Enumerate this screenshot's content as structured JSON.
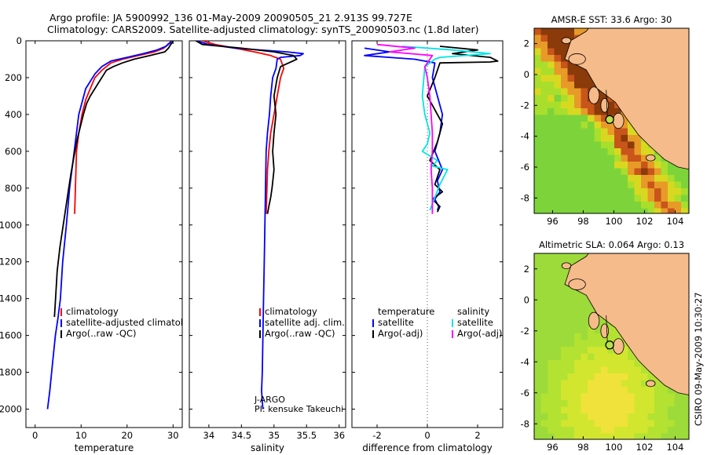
{
  "header": {
    "line1": "Argo profile: JA 5900992_136 01-May-2009 20090505_21 2.913S 99.727E",
    "line2": "Climatology: CARS2009. Satellite-adjusted climatology: synTS_20090503.nc (1.8d later)"
  },
  "footer": {
    "credit": "CSIRO 09-May-2009 10:30:27"
  },
  "colors": {
    "climatology": "#ff0000",
    "satellite": "#0000ff",
    "argo": "#000000",
    "sal_satellite": "#00e5e5",
    "sal_argo": "#ff00ff",
    "land": "#f5bb8a",
    "zero_line": "#555555"
  },
  "chart_data": [
    {
      "type": "line",
      "xlabel": "temperature",
      "ylabel": "",
      "xlim": [
        -2,
        32
      ],
      "ylim": [
        0,
        2100
      ],
      "y_inverted": true,
      "xticks": [
        0,
        10,
        20,
        30
      ],
      "yticks": [
        0,
        200,
        400,
        600,
        800,
        1000,
        1200,
        1400,
        1600,
        1800,
        2000
      ],
      "legend": [
        "climatology",
        "satellite-adjusted climatology",
        "Argo(..raw -QC)"
      ],
      "legend_location": "lower-right",
      "series": [
        {
          "name": "climatology",
          "color": "#ff0000",
          "x": [
            29.5,
            29.3,
            28.8,
            28.0,
            26.0,
            22.5,
            19.0,
            16.5,
            14.5,
            13.0,
            12.0,
            11.0,
            10.2,
            9.5,
            9.0,
            8.6
          ],
          "y": [
            0,
            10,
            20,
            40,
            60,
            80,
            100,
            120,
            160,
            200,
            260,
            320,
            400,
            500,
            600,
            940
          ]
        },
        {
          "name": "satellite-adjusted climatology",
          "color": "#0000ff",
          "x": [
            29.6,
            29.4,
            28.5,
            26.5,
            23.5,
            20.0,
            16.5,
            14.5,
            13.0,
            11.0,
            9.5,
            8.5,
            7.5,
            6.8,
            6.0,
            5.5,
            5.0,
            4.4,
            3.8,
            3.2,
            2.7
          ],
          "y": [
            0,
            10,
            30,
            50,
            70,
            90,
            110,
            140,
            180,
            260,
            400,
            600,
            800,
            1000,
            1200,
            1400,
            1500,
            1600,
            1750,
            1900,
            2000
          ]
        },
        {
          "name": "Argo(..raw -QC)",
          "color": "#000000",
          "x": [
            30.0,
            29.8,
            29.5,
            29.0,
            28.2,
            25.0,
            21.5,
            19.0,
            17.0,
            15.5,
            15.0,
            14.0,
            13.0,
            12.0,
            11.2,
            10.5,
            10.0,
            9.2,
            8.5,
            7.8,
            7.2,
            6.6,
            6.0,
            5.4,
            4.8,
            4.5,
            4.2
          ],
          "y": [
            0,
            10,
            20,
            40,
            60,
            80,
            100,
            120,
            140,
            160,
            180,
            220,
            260,
            300,
            340,
            400,
            450,
            530,
            620,
            720,
            820,
            920,
            1020,
            1120,
            1250,
            1380,
            1500
          ]
        }
      ]
    },
    {
      "type": "line",
      "xlabel": "salinity",
      "ylabel": "",
      "xlim": [
        33.7,
        36.1
      ],
      "ylim": [
        0,
        2100
      ],
      "y_inverted": true,
      "xticks": [
        34,
        34.5,
        35,
        35.5,
        36
      ],
      "legend": [
        "climatology",
        "satellite adj. clim.",
        "Argo(..raw -QC)"
      ],
      "legend_location": "lower-right",
      "annotations": [
        "J-ARGO",
        "PI: kensuke Takeuchi"
      ],
      "series": [
        {
          "name": "climatology",
          "color": "#ff0000",
          "x": [
            33.9,
            34.1,
            34.4,
            34.7,
            34.95,
            35.1,
            35.15,
            35.1,
            35.05,
            35.0,
            34.95,
            34.92,
            34.9,
            34.88
          ],
          "y": [
            0,
            20,
            40,
            60,
            80,
            100,
            150,
            200,
            300,
            400,
            500,
            600,
            700,
            940
          ]
        },
        {
          "name": "satellite adj. clim.",
          "color": "#0000ff",
          "x": [
            33.8,
            34.0,
            34.4,
            35.2,
            35.45,
            35.4,
            35.1,
            35.05,
            35.03,
            34.98,
            34.95,
            34.93,
            34.9,
            34.88,
            34.87,
            34.86,
            34.85,
            34.84,
            34.83,
            34.82,
            34.81,
            34.82,
            34.83
          ],
          "y": [
            0,
            20,
            40,
            60,
            70,
            80,
            90,
            100,
            150,
            200,
            300,
            400,
            500,
            600,
            800,
            1000,
            1200,
            1400,
            1600,
            1800,
            1900,
            1960,
            2000
          ]
        },
        {
          "name": "Argo(..raw -QC)",
          "color": "#000000",
          "x": [
            33.8,
            33.9,
            34.5,
            35.0,
            35.3,
            35.35,
            35.1,
            35.05,
            35.0,
            35.03,
            35.0,
            34.98,
            35.0,
            34.97,
            34.95,
            34.92,
            34.9
          ],
          "y": [
            0,
            20,
            40,
            60,
            80,
            100,
            140,
            200,
            300,
            400,
            500,
            600,
            700,
            800,
            850,
            900,
            940
          ]
        }
      ]
    },
    {
      "type": "line",
      "xlabel": "difference from climatology",
      "ylabel": "",
      "xlim": [
        -3,
        3
      ],
      "ylim": [
        0,
        2100
      ],
      "y_inverted": true,
      "xticks": [
        -2,
        0,
        2
      ],
      "legend": [
        "temperature",
        "satellite",
        "Argo(-adj)",
        "salinity",
        "satellite",
        "Argo(-adj)"
      ],
      "legend_location": "lower-center",
      "series": [
        {
          "name": "temperature satellite",
          "color": "#0000ff",
          "x": [
            -2.5,
            -1.5,
            -2.5,
            -0.5,
            0.3,
            0.2,
            0.4,
            0.6,
            0.5,
            0.3,
            0.6,
            0.4,
            0.5,
            0.3,
            0.45,
            0.4
          ],
          "y": [
            40,
            60,
            80,
            100,
            120,
            200,
            300,
            400,
            500,
            600,
            700,
            760,
            820,
            860,
            900,
            920
          ]
        },
        {
          "name": "temperature Argo(-adj)",
          "color": "#000000",
          "x": [
            0.5,
            2.0,
            1.0,
            2.5,
            2.8,
            2.5,
            0.5,
            0.3,
            0.0,
            0.6,
            0.4,
            0.1,
            0.5,
            0.3,
            0.6,
            0.2,
            0.5,
            0.4
          ],
          "y": [
            30,
            50,
            70,
            90,
            110,
            115,
            120,
            200,
            300,
            450,
            550,
            650,
            700,
            780,
            820,
            860,
            900,
            930
          ]
        },
        {
          "name": "salinity satellite",
          "color": "#00e5e5",
          "x": [
            -1.0,
            1.0,
            2.5,
            0.5,
            0.3,
            -0.1,
            -0.2,
            -0.1,
            0.1,
            0.0,
            -0.2,
            0.4,
            0.2,
            0.8,
            0.5,
            0.3,
            0.1
          ],
          "y": [
            30,
            50,
            70,
            90,
            100,
            140,
            300,
            400,
            500,
            560,
            600,
            650,
            680,
            700,
            780,
            850,
            920
          ]
        },
        {
          "name": "salinity Argo(-adj)",
          "color": "#ff00ff",
          "x": [
            -2.0,
            -0.5,
            -1.5,
            0.2,
            0.1,
            -0.1,
            0.0,
            0.1,
            0.15,
            0.2,
            0.2,
            0.15,
            0.2,
            0.2,
            0.2
          ],
          "y": [
            20,
            40,
            60,
            80,
            100,
            140,
            200,
            300,
            400,
            500,
            600,
            700,
            800,
            900,
            940
          ]
        }
      ]
    },
    {
      "type": "heatmap",
      "title": "AMSR-E SST: 33.6 Argo: 30",
      "xlim": [
        94.8,
        104.9
      ],
      "ylim": [
        -9,
        3
      ],
      "xticks": [
        96,
        98,
        100,
        102,
        104
      ],
      "yticks": [
        -8,
        -6,
        -4,
        -2,
        0,
        2
      ],
      "marker": {
        "lon": 99.727,
        "lat": -2.913
      },
      "field": "sea surface temperature (colour scale yellow-green = cooler, red/brown = warmer)"
    },
    {
      "type": "heatmap",
      "title": "Altimetric SLA: 0.064 Argo: 0.13",
      "xlim": [
        94.8,
        104.9
      ],
      "ylim": [
        -9,
        3
      ],
      "xticks": [
        96,
        98,
        100,
        102,
        104
      ],
      "yticks": [
        -8,
        -6,
        -4,
        -2,
        0,
        2
      ],
      "marker": {
        "lon": 99.727,
        "lat": -2.913
      },
      "field": "sea level anomaly (colour scale)"
    }
  ]
}
